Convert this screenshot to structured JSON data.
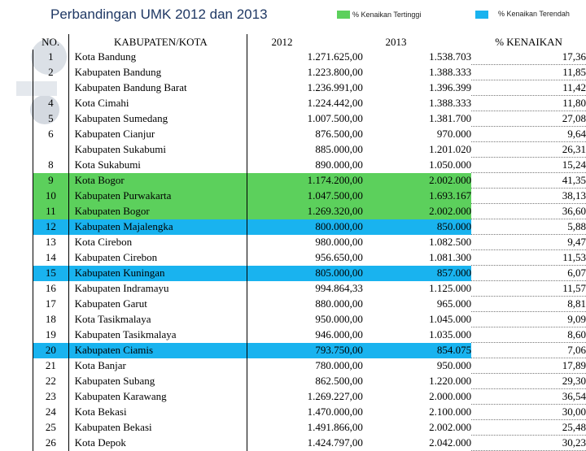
{
  "title": "Perbandingan UMK 2012 dan 2013",
  "legend": {
    "highest_label": "% Kenaikan Tertinggi",
    "highest_color": "#5cd05c",
    "lowest_label": "% Kenaikan Terendah",
    "lowest_color": "#19b3ef"
  },
  "table": {
    "headers": {
      "no": "NO.",
      "kab": "KABUPATEN/KOTA",
      "y2012": "2012",
      "y2013": "2013",
      "pct": "% KENAIKAN"
    },
    "rows": [
      {
        "no": "1",
        "kab": "Kota Bandung",
        "y2012": "1.271.625,00",
        "y2013": "1.538.703",
        "pct": "17,36",
        "hl": ""
      },
      {
        "no": "2",
        "kab": "Kabupaten Bandung",
        "y2012": "1.223.800,00",
        "y2013": "1.388.333",
        "pct": "11,85",
        "hl": ""
      },
      {
        "no": "",
        "kab": "Kabupaten Bandung Barat",
        "y2012": "1.236.991,00",
        "y2013": "1.396.399",
        "pct": "11,42",
        "hl": ""
      },
      {
        "no": "4",
        "kab": "Kota Cimahi",
        "y2012": "1.224.442,00",
        "y2013": "1.388.333",
        "pct": "11,80",
        "hl": ""
      },
      {
        "no": "5",
        "kab": "Kabupaten Sumedang",
        "y2012": "1.007.500,00",
        "y2013": "1.381.700",
        "pct": "27,08",
        "hl": ""
      },
      {
        "no": "6",
        "kab": "Kabupaten Cianjur",
        "y2012": "876.500,00",
        "y2013": "970.000",
        "pct": "9,64",
        "hl": ""
      },
      {
        "no": "",
        "kab": "Kabupaten Sukabumi",
        "y2012": "885.000,00",
        "y2013": "1.201.020",
        "pct": "26,31",
        "hl": ""
      },
      {
        "no": "8",
        "kab": "Kota Sukabumi",
        "y2012": "890.000,00",
        "y2013": "1.050.000",
        "pct": "15,24",
        "hl": ""
      },
      {
        "no": "9",
        "kab": "Kota Bogor",
        "y2012": "1.174.200,00",
        "y2013": "2.002.000",
        "pct": "41,35",
        "hl": "green"
      },
      {
        "no": "10",
        "kab": "Kabupaten Purwakarta",
        "y2012": "1.047.500,00",
        "y2013": "1.693.167",
        "pct": "38,13",
        "hl": "green"
      },
      {
        "no": "11",
        "kab": "Kabupaten Bogor",
        "y2012": "1.269.320,00",
        "y2013": "2.002.000",
        "pct": "36,60",
        "hl": "green"
      },
      {
        "no": "12",
        "kab": "Kabupaten Majalengka",
        "y2012": "800.000,00",
        "y2013": "850.000",
        "pct": "5,88",
        "hl": "blue"
      },
      {
        "no": "13",
        "kab": "Kota Cirebon",
        "y2012": "980.000,00",
        "y2013": "1.082.500",
        "pct": "9,47",
        "hl": ""
      },
      {
        "no": "14",
        "kab": "Kabupaten Cirebon",
        "y2012": "956.650,00",
        "y2013": "1.081.300",
        "pct": "11,53",
        "hl": ""
      },
      {
        "no": "15",
        "kab": "Kabupaten Kuningan",
        "y2012": "805.000,00",
        "y2013": "857.000",
        "pct": "6,07",
        "hl": "blue"
      },
      {
        "no": "16",
        "kab": "Kabupaten Indramayu",
        "y2012": "994.864,33",
        "y2013": "1.125.000",
        "pct": "11,57",
        "hl": ""
      },
      {
        "no": "17",
        "kab": "Kabupaten Garut",
        "y2012": "880.000,00",
        "y2013": "965.000",
        "pct": "8,81",
        "hl": ""
      },
      {
        "no": "18",
        "kab": "Kota Tasikmalaya",
        "y2012": "950.000,00",
        "y2013": "1.045.000",
        "pct": "9,09",
        "hl": ""
      },
      {
        "no": "19",
        "kab": "Kabupaten Tasikmalaya",
        "y2012": "946.000,00",
        "y2013": "1.035.000",
        "pct": "8,60",
        "hl": ""
      },
      {
        "no": "20",
        "kab": "Kabupaten Ciamis",
        "y2012": "793.750,00",
        "y2013": "854.075",
        "pct": "7,06",
        "hl": "blue"
      },
      {
        "no": "21",
        "kab": "Kota Banjar",
        "y2012": "780.000,00",
        "y2013": "950.000",
        "pct": "17,89",
        "hl": ""
      },
      {
        "no": "22",
        "kab": "Kabupaten Subang",
        "y2012": "862.500,00",
        "y2013": "1.220.000",
        "pct": "29,30",
        "hl": ""
      },
      {
        "no": "23",
        "kab": "Kabupaten Karawang",
        "y2012": "1.269.227,00",
        "y2013": "2.000.000",
        "pct": "36,54",
        "hl": ""
      },
      {
        "no": "24",
        "kab": "Kota Bekasi",
        "y2012": "1.470.000,00",
        "y2013": "2.100.000",
        "pct": "30,00",
        "hl": ""
      },
      {
        "no": "25",
        "kab": "Kabupaten  Bekasi",
        "y2012": "1.491.866,00",
        "y2013": "2.002.000",
        "pct": "25,48",
        "hl": ""
      },
      {
        "no": "26",
        "kab": "Kota Depok",
        "y2012": "1.424.797,00",
        "y2013": "2.042.000",
        "pct": "30,23",
        "hl": ""
      }
    ]
  }
}
